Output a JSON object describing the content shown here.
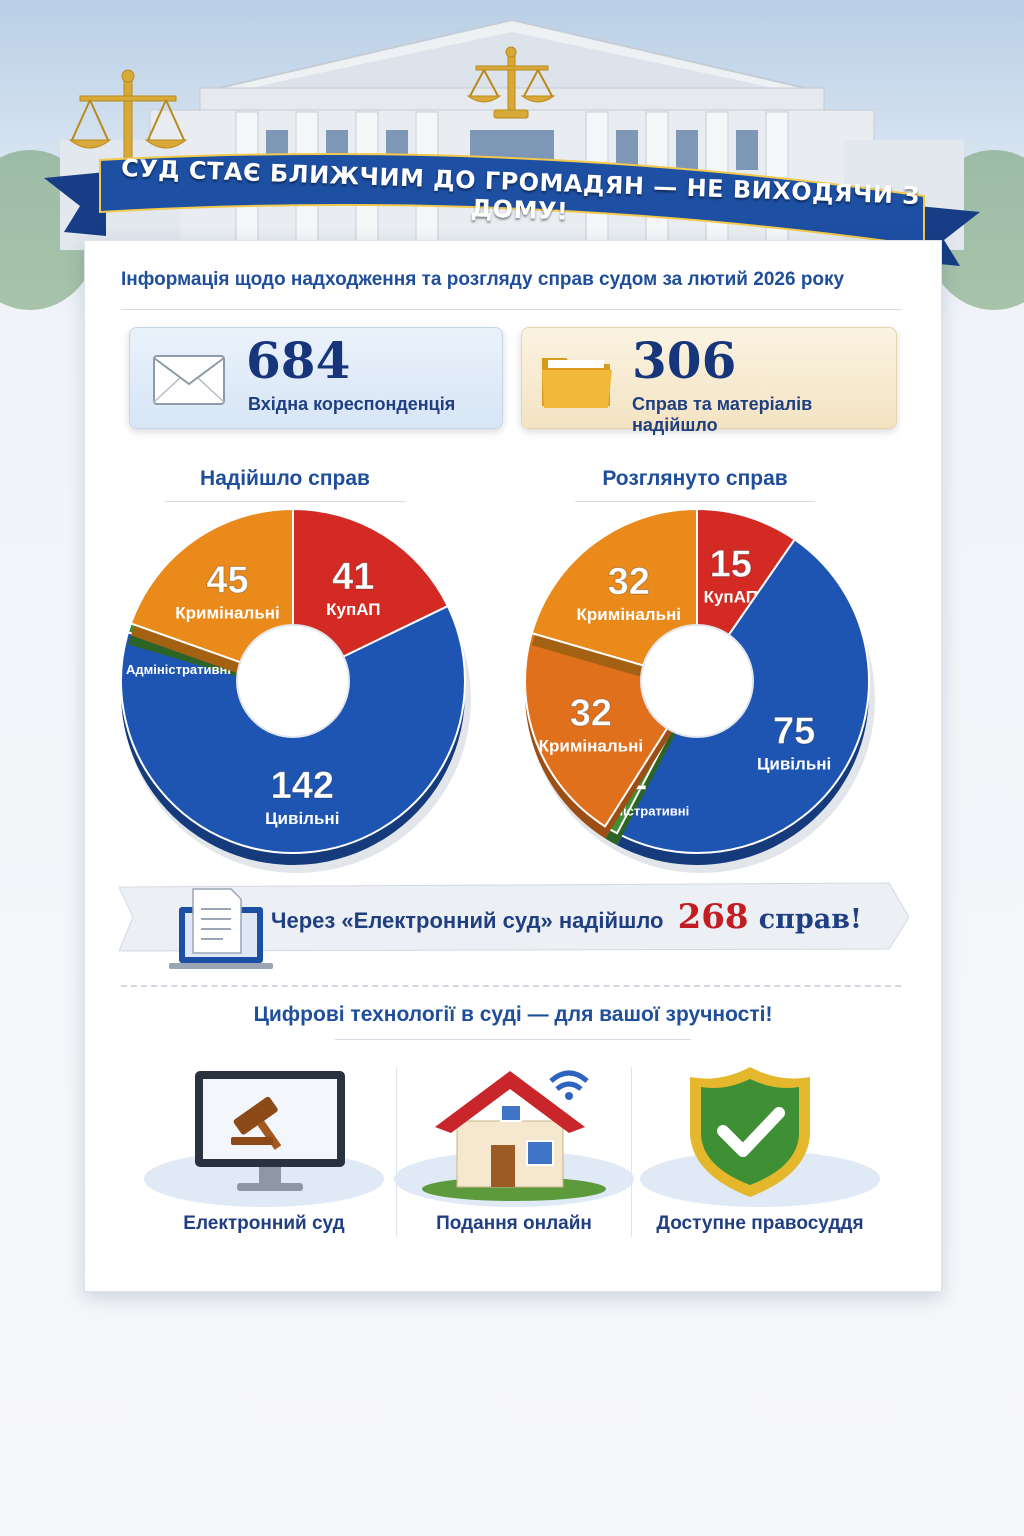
{
  "header": {
    "banner_title": "СУД СТАЄ БЛИЖЧИМ ДО ГРОМАДЯН — НЕ ВИХОДЯЧИ З ДОМУ!"
  },
  "report": {
    "subtitle": "Інформація щодо надходження та розгляду справ судом за лютий 2026 року"
  },
  "stats": {
    "incoming_correspondence": {
      "value": "684",
      "label": "Вхідна кореспонденція",
      "icon": "envelope-icon"
    },
    "cases_received": {
      "value": "306",
      "label": "Справ та матеріалів надійшло",
      "icon": "folder-icon"
    }
  },
  "chart_data": [
    {
      "type": "pie",
      "title": "Надійшло справ",
      "slices": [
        {
          "label": "КупАП",
          "value": 41,
          "color": "#d32a24"
        },
        {
          "label": "Цивільні",
          "value": 142,
          "color": "#1e55b3"
        },
        {
          "label": "Адміністративні",
          "value": 2,
          "color": "#3f8f35"
        },
        {
          "label": "Кримінальні",
          "value": 45,
          "color": "#ea8a1a"
        }
      ]
    },
    {
      "type": "pie",
      "title": "Розглянуто справ",
      "slices": [
        {
          "label": "КупАП",
          "value": 15,
          "color": "#d32a24"
        },
        {
          "label": "Цивільні",
          "value": 75,
          "color": "#1e55b3"
        },
        {
          "label": "Адміністративні",
          "value": 2,
          "color": "#3f8f35"
        },
        {
          "label": "Кримінальні",
          "value": 32,
          "color": "#e0701c"
        },
        {
          "label": "Кримінальні",
          "value": 32,
          "color": "#ea8a1a"
        }
      ]
    }
  ],
  "ecourt_banner": {
    "text": "Через «Електронний суд» надійшло",
    "count": "268",
    "unit": "справ!",
    "icon": "laptop-document-icon"
  },
  "technologies": {
    "title": "Цифрові технології в суді — для вашої зручності!",
    "items": [
      {
        "label": "Електронний суд",
        "icon": "monitor-gavel-icon"
      },
      {
        "label": "Подання онлайн",
        "icon": "house-wifi-icon"
      },
      {
        "label": "Доступне правосуддя",
        "icon": "shield-check-icon"
      }
    ]
  },
  "colors": {
    "brand_blue": "#1f4e9a",
    "accent_red": "#c21d22",
    "ribbon_blue": "#1d4fa3"
  }
}
